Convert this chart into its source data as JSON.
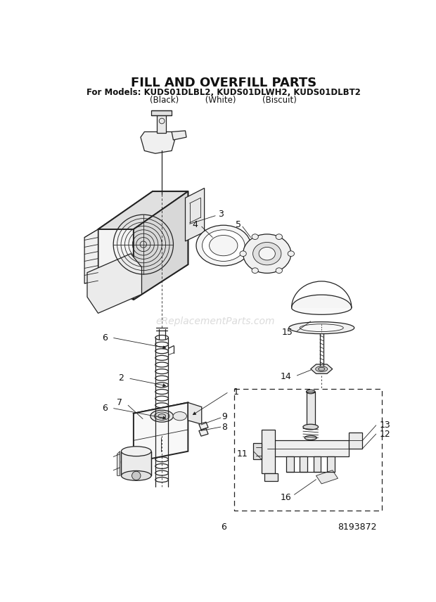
{
  "title": "FILL AND OVERFILL PARTS",
  "subtitle1": "For Models: KUDS01DLBL2, KUDS01DLWH2, KUDS01DLBT2",
  "subtitle2": "(Black)          (White)          (Biscuit)",
  "page_num": "6",
  "doc_num": "8193872",
  "watermark": "eReplacementParts.com",
  "bg_color": "#ffffff",
  "line_color": "#222222",
  "label_color": "#111111"
}
